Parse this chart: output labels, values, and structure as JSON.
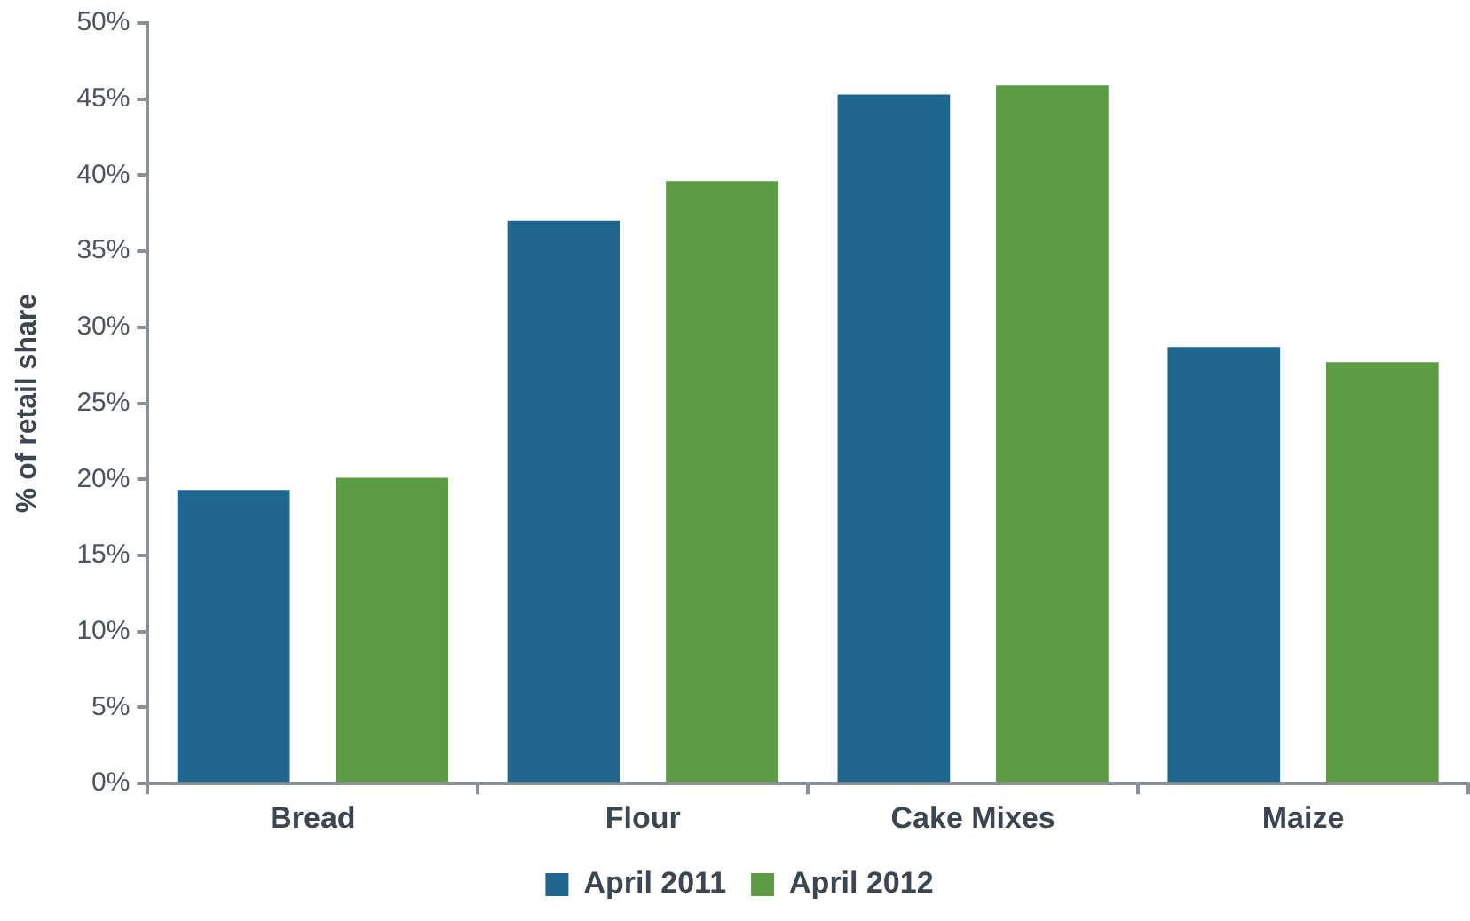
{
  "chart_data": {
    "type": "bar",
    "ylabel": "% of retail share",
    "categories": [
      "Bread",
      "Flour",
      "Cake Mixes",
      "Maize"
    ],
    "series": [
      {
        "name": "April 2011",
        "color": "#1f668e",
        "values": [
          19.3,
          37.0,
          45.3,
          28.7
        ]
      },
      {
        "name": "April 2012",
        "color": "#5b9c45",
        "values": [
          20.1,
          39.6,
          45.9,
          27.7
        ]
      }
    ],
    "ylim": [
      0,
      50
    ],
    "yticks": [
      {
        "value": 0,
        "label": "0%"
      },
      {
        "value": 5,
        "label": "5%"
      },
      {
        "value": 10,
        "label": "10%"
      },
      {
        "value": 15,
        "label": "15%"
      },
      {
        "value": 20,
        "label": "20%"
      },
      {
        "value": 25,
        "label": "25%"
      },
      {
        "value": 30,
        "label": "30%"
      },
      {
        "value": 35,
        "label": "35%"
      },
      {
        "value": 40,
        "label": "40%"
      },
      {
        "value": 45,
        "label": "45%"
      },
      {
        "value": 50,
        "label": "50%"
      }
    ],
    "legend": "bottom"
  }
}
